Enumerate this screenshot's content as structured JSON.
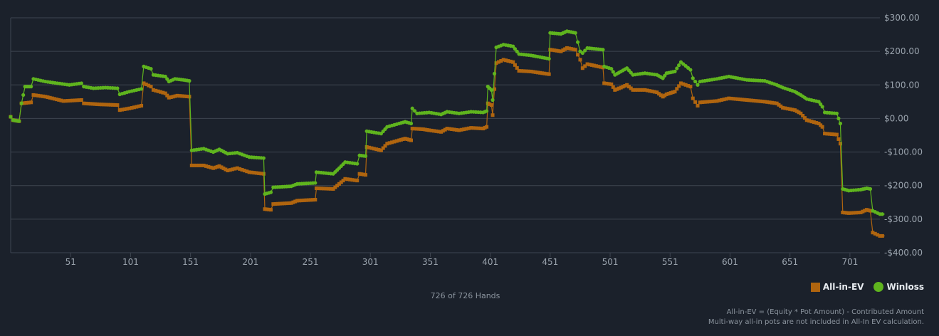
{
  "colors": {
    "background": "#1b212b",
    "grid": "#3e4550",
    "all_in_ev": "#b0650f",
    "winloss": "#5fb41e",
    "text": "#9aa3ad"
  },
  "legend": {
    "all_in_ev_label": "All-in-EV",
    "winloss_label": "Winloss"
  },
  "hands_caption": "726 of 726 Hands",
  "footnote": {
    "line1": "All-in-EV = (Equity * Pot Amount) - Contributed Amount",
    "line2": "Multi-way all-in pots are not included in All-In EV calculation."
  },
  "chart_data": {
    "type": "line",
    "title": "",
    "xlabel": "",
    "ylabel": "",
    "xlim": [
      1,
      726
    ],
    "ylim": [
      -400,
      300
    ],
    "grid": true,
    "legend_position": "bottom-right",
    "x_ticks": [
      51,
      101,
      151,
      201,
      251,
      301,
      351,
      401,
      451,
      501,
      551,
      601,
      651,
      701
    ],
    "x_tick_labels": [
      "51",
      "101",
      "151",
      "201",
      "251",
      "301",
      "351",
      "401",
      "451",
      "501",
      "551",
      "601",
      "651",
      "701"
    ],
    "y_ticks": [
      300,
      200,
      100,
      0,
      -100,
      -200,
      -300,
      -400
    ],
    "y_tick_labels": [
      "$300.00",
      "$200.00",
      "$100.00",
      "$0.00",
      "-$100.00",
      "-$200.00",
      "-$300.00",
      "-$400.00"
    ],
    "series": [
      {
        "name": "All-in-EV",
        "points": [
          [
            1,
            5
          ],
          [
            3,
            -5
          ],
          [
            8,
            -8
          ],
          [
            10,
            45
          ],
          [
            18,
            48
          ],
          [
            20,
            70
          ],
          [
            30,
            65
          ],
          [
            45,
            52
          ],
          [
            60,
            55
          ],
          [
            62,
            45
          ],
          [
            75,
            42
          ],
          [
            90,
            40
          ],
          [
            92,
            25
          ],
          [
            100,
            30
          ],
          [
            110,
            38
          ],
          [
            112,
            105
          ],
          [
            118,
            95
          ],
          [
            120,
            85
          ],
          [
            130,
            75
          ],
          [
            133,
            62
          ],
          [
            140,
            68
          ],
          [
            150,
            65
          ],
          [
            152,
            -140
          ],
          [
            162,
            -140
          ],
          [
            170,
            -148
          ],
          [
            175,
            -142
          ],
          [
            182,
            -155
          ],
          [
            190,
            -148
          ],
          [
            200,
            -160
          ],
          [
            212,
            -165
          ],
          [
            213,
            -270
          ],
          [
            218,
            -272
          ],
          [
            220,
            -255
          ],
          [
            235,
            -252
          ],
          [
            240,
            -245
          ],
          [
            255,
            -242
          ],
          [
            256,
            -208
          ],
          [
            270,
            -210
          ],
          [
            275,
            -195
          ],
          [
            280,
            -180
          ],
          [
            290,
            -185
          ],
          [
            292,
            -165
          ],
          [
            297,
            -168
          ],
          [
            298,
            -85
          ],
          [
            310,
            -95
          ],
          [
            315,
            -75
          ],
          [
            325,
            -65
          ],
          [
            330,
            -60
          ],
          [
            335,
            -65
          ],
          [
            336,
            -30
          ],
          [
            345,
            -32
          ],
          [
            350,
            -35
          ],
          [
            360,
            -40
          ],
          [
            365,
            -30
          ],
          [
            375,
            -35
          ],
          [
            385,
            -28
          ],
          [
            395,
            -30
          ],
          [
            398,
            -25
          ],
          [
            399,
            45
          ],
          [
            402,
            40
          ],
          [
            403,
            10
          ],
          [
            406,
            165
          ],
          [
            412,
            175
          ],
          [
            420,
            168
          ],
          [
            425,
            142
          ],
          [
            435,
            140
          ],
          [
            450,
            132
          ],
          [
            451,
            205
          ],
          [
            460,
            200
          ],
          [
            465,
            210
          ],
          [
            472,
            205
          ],
          [
            476,
            175
          ],
          [
            478,
            150
          ],
          [
            482,
            162
          ],
          [
            495,
            152
          ],
          [
            496,
            105
          ],
          [
            502,
            102
          ],
          [
            505,
            85
          ],
          [
            510,
            92
          ],
          [
            515,
            100
          ],
          [
            520,
            85
          ],
          [
            530,
            85
          ],
          [
            540,
            78
          ],
          [
            545,
            65
          ],
          [
            548,
            72
          ],
          [
            555,
            80
          ],
          [
            560,
            105
          ],
          [
            568,
            95
          ],
          [
            570,
            60
          ],
          [
            574,
            38
          ],
          [
            576,
            48
          ],
          [
            590,
            52
          ],
          [
            600,
            60
          ],
          [
            615,
            55
          ],
          [
            630,
            50
          ],
          [
            640,
            45
          ],
          [
            645,
            32
          ],
          [
            655,
            25
          ],
          [
            660,
            15
          ],
          [
            665,
            -5
          ],
          [
            675,
            -15
          ],
          [
            678,
            -25
          ],
          [
            680,
            -45
          ],
          [
            690,
            -48
          ],
          [
            693,
            -75
          ],
          [
            695,
            -280
          ],
          [
            700,
            -282
          ],
          [
            710,
            -280
          ],
          [
            715,
            -272
          ],
          [
            718,
            -275
          ],
          [
            720,
            -340
          ],
          [
            726,
            -350
          ],
          [
            730,
            -350
          ]
        ]
      },
      {
        "name": "Winloss",
        "points": [
          [
            1,
            5
          ],
          [
            3,
            -5
          ],
          [
            8,
            -8
          ],
          [
            10,
            45
          ],
          [
            13,
            95
          ],
          [
            18,
            95
          ],
          [
            20,
            118
          ],
          [
            30,
            110
          ],
          [
            40,
            105
          ],
          [
            50,
            100
          ],
          [
            60,
            105
          ],
          [
            62,
            95
          ],
          [
            70,
            90
          ],
          [
            80,
            92
          ],
          [
            90,
            90
          ],
          [
            92,
            72
          ],
          [
            100,
            80
          ],
          [
            110,
            88
          ],
          [
            112,
            155
          ],
          [
            118,
            148
          ],
          [
            120,
            130
          ],
          [
            130,
            125
          ],
          [
            133,
            110
          ],
          [
            138,
            118
          ],
          [
            145,
            115
          ],
          [
            150,
            112
          ],
          [
            152,
            -95
          ],
          [
            162,
            -90
          ],
          [
            170,
            -100
          ],
          [
            175,
            -92
          ],
          [
            182,
            -105
          ],
          [
            190,
            -102
          ],
          [
            200,
            -115
          ],
          [
            212,
            -118
          ],
          [
            213,
            -225
          ],
          [
            218,
            -220
          ],
          [
            220,
            -205
          ],
          [
            235,
            -202
          ],
          [
            240,
            -195
          ],
          [
            255,
            -192
          ],
          [
            256,
            -160
          ],
          [
            270,
            -165
          ],
          [
            275,
            -148
          ],
          [
            280,
            -130
          ],
          [
            290,
            -135
          ],
          [
            292,
            -110
          ],
          [
            297,
            -112
          ],
          [
            298,
            -38
          ],
          [
            310,
            -45
          ],
          [
            315,
            -25
          ],
          [
            325,
            -15
          ],
          [
            330,
            -10
          ],
          [
            335,
            -15
          ],
          [
            336,
            30
          ],
          [
            340,
            15
          ],
          [
            350,
            18
          ],
          [
            360,
            12
          ],
          [
            365,
            20
          ],
          [
            375,
            15
          ],
          [
            385,
            20
          ],
          [
            395,
            18
          ],
          [
            398,
            22
          ],
          [
            399,
            95
          ],
          [
            402,
            85
          ],
          [
            403,
            55
          ],
          [
            406,
            212
          ],
          [
            412,
            220
          ],
          [
            420,
            215
          ],
          [
            425,
            192
          ],
          [
            435,
            188
          ],
          [
            450,
            178
          ],
          [
            451,
            255
          ],
          [
            460,
            252
          ],
          [
            465,
            260
          ],
          [
            472,
            255
          ],
          [
            476,
            200
          ],
          [
            478,
            195
          ],
          [
            482,
            210
          ],
          [
            495,
            205
          ],
          [
            496,
            155
          ],
          [
            502,
            148
          ],
          [
            505,
            130
          ],
          [
            510,
            140
          ],
          [
            515,
            150
          ],
          [
            520,
            130
          ],
          [
            530,
            135
          ],
          [
            540,
            130
          ],
          [
            545,
            120
          ],
          [
            548,
            135
          ],
          [
            555,
            140
          ],
          [
            560,
            168
          ],
          [
            568,
            145
          ],
          [
            570,
            120
          ],
          [
            574,
            100
          ],
          [
            576,
            110
          ],
          [
            590,
            118
          ],
          [
            600,
            125
          ],
          [
            615,
            115
          ],
          [
            630,
            112
          ],
          [
            640,
            100
          ],
          [
            645,
            92
          ],
          [
            655,
            80
          ],
          [
            660,
            70
          ],
          [
            665,
            58
          ],
          [
            675,
            50
          ],
          [
            678,
            35
          ],
          [
            680,
            18
          ],
          [
            690,
            15
          ],
          [
            693,
            -15
          ],
          [
            695,
            -210
          ],
          [
            700,
            -215
          ],
          [
            710,
            -212
          ],
          [
            715,
            -208
          ],
          [
            718,
            -210
          ],
          [
            720,
            -275
          ],
          [
            726,
            -285
          ],
          [
            730,
            -285
          ]
        ]
      }
    ]
  }
}
